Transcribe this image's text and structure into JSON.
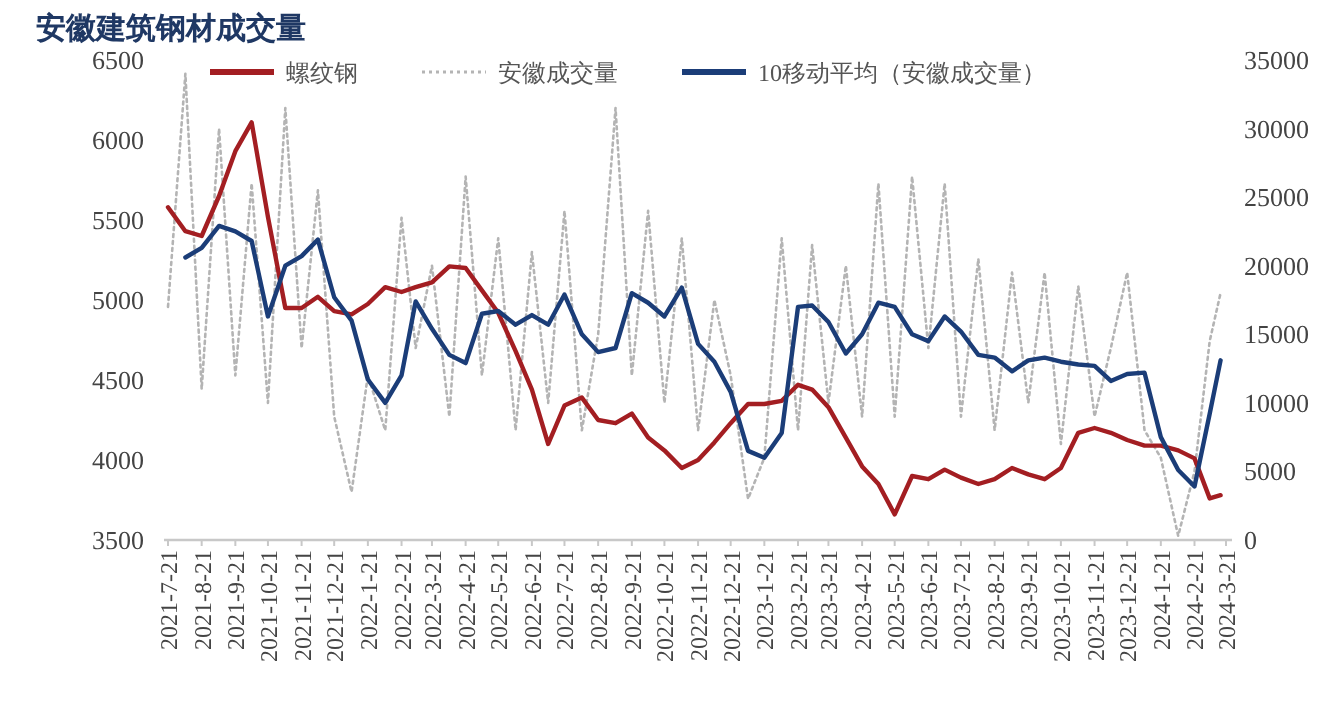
{
  "chart_data": {
    "type": "line",
    "title": "安徽建筑钢材成交量",
    "x": [
      "2021-07-21",
      "2021-08-06",
      "2021-08-21",
      "2021-09-06",
      "2021-09-21",
      "2021-10-06",
      "2021-10-21",
      "2021-11-06",
      "2021-11-21",
      "2021-12-06",
      "2021-12-21",
      "2022-01-06",
      "2022-01-21",
      "2022-02-06",
      "2022-02-21",
      "2022-03-06",
      "2022-03-21",
      "2022-04-06",
      "2022-04-21",
      "2022-05-06",
      "2022-05-21",
      "2022-06-06",
      "2022-06-21",
      "2022-07-06",
      "2022-07-21",
      "2022-08-06",
      "2022-08-21",
      "2022-09-06",
      "2022-09-21",
      "2022-10-06",
      "2022-10-21",
      "2022-11-06",
      "2022-11-21",
      "2022-12-06",
      "2022-12-21",
      "2023-01-06",
      "2023-01-21",
      "2023-02-06",
      "2023-02-21",
      "2023-03-06",
      "2023-03-21",
      "2023-04-06",
      "2023-04-21",
      "2023-05-06",
      "2023-05-21",
      "2023-06-06",
      "2023-06-21",
      "2023-07-06",
      "2023-07-21",
      "2023-08-06",
      "2023-08-21",
      "2023-09-06",
      "2023-09-21",
      "2023-10-06",
      "2023-10-21",
      "2023-11-06",
      "2023-11-21",
      "2023-12-06",
      "2023-12-21",
      "2024-01-06",
      "2024-01-21",
      "2024-02-06",
      "2024-02-21",
      "2024-03-06",
      "2024-03-16"
    ],
    "series": [
      {
        "name": "螺纹钢",
        "color": "#a31e22",
        "line_style": "solid",
        "values": [
          5580,
          5430,
          5400,
          5650,
          5930,
          6110,
          5520,
          4950,
          4950,
          5020,
          4930,
          4910,
          4975,
          5080,
          5050,
          5080,
          5110,
          5210,
          5200,
          5060,
          4920,
          4680,
          4440,
          4100,
          4340,
          4390,
          4250,
          4230,
          4290,
          4140,
          4060,
          3950,
          4000,
          4110,
          4230,
          4350,
          4350,
          4370,
          4470,
          4440,
          4330,
          4140,
          3960,
          3850,
          3660,
          3900,
          3880,
          3940,
          3890,
          3850,
          3880,
          3950,
          3910,
          3880,
          3950,
          4170,
          4200,
          4170,
          4125,
          4090,
          4090,
          4060,
          4010,
          3760,
          3780
        ]
      },
      {
        "name": "安徽成交量",
        "color": "#b4b4b4",
        "line_style": "dotted",
        "axis": "y2",
        "values": [
          17000,
          34000,
          11000,
          30000,
          12000,
          26000,
          10000,
          31500,
          14000,
          25500,
          9000,
          3500,
          12000,
          8000,
          23500,
          14000,
          20000,
          9000,
          26500,
          12000,
          22000,
          8000,
          21000,
          10000,
          24000,
          8000,
          15000,
          31500,
          12000,
          24000,
          10000,
          22000,
          8000,
          17500,
          12000,
          3000,
          6000,
          22000,
          8000,
          21500,
          10000,
          20000,
          9000,
          26000,
          9000,
          26500,
          14000,
          26000,
          9000,
          20500,
          8000,
          19500,
          10000,
          19500,
          7000,
          18500,
          9000,
          14000,
          19500,
          8000,
          6000,
          300,
          5000,
          14500,
          18000
        ]
      },
      {
        "name": "10移动平均（安徽成交量）",
        "color": "#1b3d78",
        "line_style": "solid",
        "axis": "y2",
        "values": [
          null,
          20600,
          21300,
          22900,
          22500,
          21800,
          16300,
          20000,
          20700,
          21900,
          17700,
          16000,
          11700,
          10000,
          12000,
          17400,
          15400,
          13500,
          12900,
          16500,
          16700,
          15700,
          16400,
          15700,
          17900,
          15000,
          13700,
          14000,
          18000,
          17300,
          16300,
          18400,
          14300,
          13000,
          10800,
          6500,
          6000,
          7800,
          17000,
          17100,
          15900,
          13600,
          15000,
          17300,
          17000,
          15000,
          14500,
          16300,
          15200,
          13500,
          13300,
          12300,
          13100,
          13300,
          13000,
          12800,
          12700,
          11600,
          12100,
          12200,
          7500,
          5100,
          3900,
          9200,
          13100
        ]
      }
    ],
    "xlim": [
      "2021-07-21",
      "2024-03-21"
    ],
    "xticks": [
      {
        "value": "2021-07-21",
        "label": "2021-7-21"
      },
      {
        "value": "2021-08-21",
        "label": "2021-8-21"
      },
      {
        "value": "2021-09-21",
        "label": "2021-9-21"
      },
      {
        "value": "2021-10-21",
        "label": "2021-10-21"
      },
      {
        "value": "2021-11-21",
        "label": "2021-11-21"
      },
      {
        "value": "2021-12-21",
        "label": "2021-12-21"
      },
      {
        "value": "2022-01-21",
        "label": "2022-1-21"
      },
      {
        "value": "2022-02-21",
        "label": "2022-2-21"
      },
      {
        "value": "2022-03-21",
        "label": "2022-3-21"
      },
      {
        "value": "2022-04-21",
        "label": "2022-4-21"
      },
      {
        "value": "2022-05-21",
        "label": "2022-5-21"
      },
      {
        "value": "2022-06-21",
        "label": "2022-6-21"
      },
      {
        "value": "2022-07-21",
        "label": "2022-7-21"
      },
      {
        "value": "2022-08-21",
        "label": "2022-8-21"
      },
      {
        "value": "2022-09-21",
        "label": "2022-9-21"
      },
      {
        "value": "2022-10-21",
        "label": "2022-10-21"
      },
      {
        "value": "2022-11-21",
        "label": "2022-11-21"
      },
      {
        "value": "2022-12-21",
        "label": "2022-12-21"
      },
      {
        "value": "2023-01-21",
        "label": "2023-1-21"
      },
      {
        "value": "2023-02-21",
        "label": "2023-2-21"
      },
      {
        "value": "2023-03-21",
        "label": "2023-3-21"
      },
      {
        "value": "2023-04-21",
        "label": "2023-4-21"
      },
      {
        "value": "2023-05-21",
        "label": "2023-5-21"
      },
      {
        "value": "2023-06-21",
        "label": "2023-6-21"
      },
      {
        "value": "2023-07-21",
        "label": "2023-7-21"
      },
      {
        "value": "2023-08-21",
        "label": "2023-8-21"
      },
      {
        "value": "2023-09-21",
        "label": "2023-9-21"
      },
      {
        "value": "2023-10-21",
        "label": "2023-10-21"
      },
      {
        "value": "2023-11-21",
        "label": "2023-11-21"
      },
      {
        "value": "2023-12-21",
        "label": "2023-12-21"
      },
      {
        "value": "2024-01-21",
        "label": "2024-1-21"
      },
      {
        "value": "2024-02-21",
        "label": "2024-2-21"
      },
      {
        "value": "2024-03-21",
        "label": "2024-3-21"
      }
    ],
    "ylim": [
      3500,
      6500
    ],
    "yticks": [
      3500,
      4000,
      4500,
      5000,
      5500,
      6000,
      6500
    ],
    "y2lim": [
      0,
      35000
    ],
    "y2ticks": [
      0,
      5000,
      10000,
      15000,
      20000,
      25000,
      30000,
      35000
    ],
    "grid": false,
    "legend": "top",
    "marker": "none"
  }
}
